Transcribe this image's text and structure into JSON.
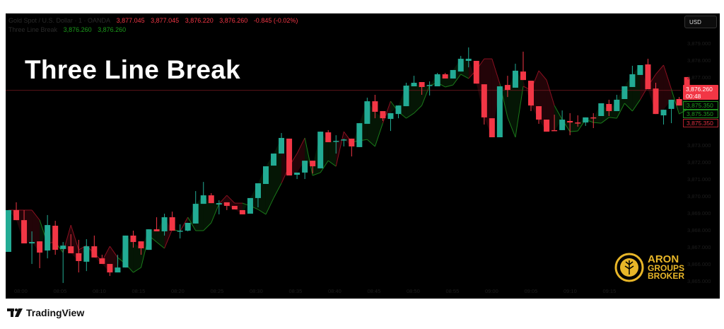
{
  "header": {
    "symbol": "Gold Spot / U.S. Dollar · 1 · OANDA",
    "open": "3,877.045",
    "high": "3,877.045",
    "low": "3,876.220",
    "close": "3,876.260",
    "change": "-0.845 (-0.02%)",
    "indicator_name": "Three Line Break",
    "indicator_value_1": "3,876.260",
    "indicator_value_2": "3,876.260"
  },
  "overlay_title": "Three Line Break",
  "currency_button": "USD",
  "price_labels": {
    "last_price": "3,876.260",
    "countdown": "00:48",
    "level_1": "3,875.350",
    "level_2": "3,875.350",
    "level_3": "3,875.350"
  },
  "brand": {
    "line1": "ARON",
    "line2": "GROUPS",
    "line3": "BROKER"
  },
  "footer": {
    "logo_text": "TradingView"
  },
  "colors": {
    "up": "#22ab94",
    "down": "#f23645",
    "indicator_up": "#1a7a1a",
    "indicator_down": "#8a1020",
    "background": "#000000",
    "brand_gold": "#e8b628"
  },
  "chart_data": {
    "type": "candlestick",
    "timeframe_minutes": 1,
    "price_axis_ticks": [
      "3,879.000",
      "3,878.000",
      "3,877.000",
      "3,873.000",
      "3,872.000",
      "3,871.000",
      "3,870.000",
      "3,869.000",
      "3,868.000",
      "3,867.000",
      "3,866.000",
      "3,865.000"
    ],
    "time_axis_ticks": [
      "08:00",
      "08:05",
      "08:10",
      "08:15",
      "08:20",
      "08:25",
      "08:30",
      "08:35",
      "08:40",
      "08:45",
      "08:50",
      "08:55",
      "09:00",
      "09:05",
      "09:10",
      "09:15"
    ],
    "ohlc": [
      [
        3866.75,
        3869.21,
        3866.75,
        3869.21
      ],
      [
        3869.21,
        3869.67,
        3868.62,
        3868.62
      ],
      [
        3868.62,
        3869.21,
        3867.25,
        3867.25
      ],
      [
        3867.25,
        3867.96,
        3866.04,
        3867.33
      ],
      [
        3867.37,
        3867.37,
        3865.79,
        3866.71
      ],
      [
        3866.83,
        3868.92,
        3866.37,
        3868.33
      ],
      [
        3868.29,
        3868.58,
        3866.58,
        3866.87
      ],
      [
        3866.92,
        3867.33,
        3864.92,
        3867.12
      ],
      [
        3867.08,
        3867.79,
        3866.67,
        3866.67
      ],
      [
        3866.67,
        3867.46,
        3865.54,
        3866.21
      ],
      [
        3866.17,
        3867.5,
        3865.62,
        3867.08
      ],
      [
        3867.08,
        3867.71,
        3866.42,
        3866.42
      ],
      [
        3866.37,
        3866.58,
        3866.04,
        3866.04
      ],
      [
        3866.04,
        3866.04,
        3865.33,
        3865.54
      ],
      [
        3865.54,
        3866.58,
        3865.54,
        3865.83
      ],
      [
        3865.83,
        3867.71,
        3865.83,
        3867.71
      ],
      [
        3867.71,
        3868.0,
        3867.0,
        3867.33
      ],
      [
        3867.37,
        3867.37,
        3866.58,
        3866.96
      ],
      [
        3866.87,
        3868.08,
        3866.87,
        3868.08
      ],
      [
        3868.08,
        3868.79,
        3867.96,
        3867.96
      ],
      [
        3867.96,
        3869.0,
        3867.71,
        3868.79
      ],
      [
        3868.79,
        3869.12,
        3868.0,
        3868.0
      ],
      [
        3867.96,
        3868.37,
        3867.54,
        3868.0
      ],
      [
        3868.0,
        3868.46,
        3867.96,
        3868.46
      ],
      [
        3868.42,
        3870.33,
        3868.42,
        3869.58
      ],
      [
        3869.58,
        3870.87,
        3869.58,
        3870.08
      ],
      [
        3870.08,
        3870.21,
        3869.62,
        3869.62
      ],
      [
        3869.54,
        3869.79,
        3868.96,
        3869.62
      ],
      [
        3869.67,
        3869.67,
        3869.21,
        3869.46
      ],
      [
        3869.46,
        3869.46,
        3869.25,
        3869.25
      ],
      [
        3869.21,
        3869.21,
        3868.96,
        3868.96
      ],
      [
        3869.0,
        3869.92,
        3869.0,
        3869.92
      ],
      [
        3869.92,
        3870.79,
        3869.37,
        3870.79
      ],
      [
        3870.75,
        3871.79,
        3870.75,
        3871.79
      ],
      [
        3871.83,
        3872.54,
        3871.83,
        3872.54
      ],
      [
        3872.54,
        3873.75,
        3872.54,
        3873.46
      ],
      [
        3873.42,
        3873.42,
        3871.25,
        3871.25
      ],
      [
        3871.29,
        3871.42,
        3871.04,
        3871.42
      ],
      [
        3871.42,
        3872.12,
        3871.04,
        3872.12
      ],
      [
        3872.12,
        3872.12,
        3871.37,
        3871.79
      ],
      [
        3871.67,
        3873.83,
        3871.67,
        3873.83
      ],
      [
        3873.79,
        3873.92,
        3873.21,
        3873.21
      ],
      [
        3873.25,
        3873.62,
        3872.54,
        3873.29
      ],
      [
        3873.33,
        3873.42,
        3872.96,
        3873.37
      ],
      [
        3873.42,
        3873.42,
        3872.37,
        3872.96
      ],
      [
        3872.92,
        3874.33,
        3872.92,
        3874.33
      ],
      [
        3874.29,
        3875.83,
        3874.29,
        3875.62
      ],
      [
        3875.62,
        3876.0,
        3874.62,
        3875.0
      ],
      [
        3875.04,
        3875.04,
        3874.46,
        3874.62
      ],
      [
        3874.58,
        3874.92,
        3873.87,
        3874.92
      ],
      [
        3874.87,
        3875.37,
        3874.62,
        3875.37
      ],
      [
        3875.33,
        3876.71,
        3875.33,
        3876.54
      ],
      [
        3876.5,
        3877.12,
        3876.5,
        3876.71
      ],
      [
        3876.75,
        3876.75,
        3876.0,
        3876.46
      ],
      [
        3876.54,
        3876.79,
        3875.96,
        3876.58
      ],
      [
        3876.5,
        3877.29,
        3876.5,
        3877.21
      ],
      [
        3877.21,
        3877.29,
        3876.96,
        3876.96
      ],
      [
        3876.96,
        3877.46,
        3876.96,
        3877.46
      ],
      [
        3877.37,
        3878.29,
        3877.37,
        3878.12
      ],
      [
        3878.0,
        3878.79,
        3877.62,
        3878.12
      ],
      [
        3878.0,
        3878.0,
        3876.66,
        3876.66
      ],
      [
        3876.62,
        3876.62,
        3874.25,
        3874.67
      ],
      [
        3874.62,
        3874.62,
        3873.5,
        3873.5
      ],
      [
        3873.5,
        3876.5,
        3873.5,
        3876.5
      ],
      [
        3876.58,
        3877.12,
        3875.87,
        3876.29
      ],
      [
        3876.42,
        3877.83,
        3876.42,
        3877.42
      ],
      [
        3877.37,
        3878.54,
        3876.87,
        3876.87
      ],
      [
        3876.83,
        3876.83,
        3875.04,
        3875.37
      ],
      [
        3875.33,
        3875.33,
        3874.29,
        3874.54
      ],
      [
        3874.54,
        3874.54,
        3873.83,
        3873.83
      ],
      [
        3873.92,
        3874.83,
        3873.87,
        3873.87
      ],
      [
        3873.92,
        3875.08,
        3873.92,
        3874.54
      ],
      [
        3874.46,
        3874.92,
        3873.62,
        3874.37
      ],
      [
        3874.37,
        3874.79,
        3874.12,
        3874.33
      ],
      [
        3874.37,
        3874.67,
        3874.17,
        3874.67
      ],
      [
        3874.67,
        3874.92,
        3874.04,
        3874.62
      ],
      [
        3874.75,
        3875.5,
        3874.75,
        3875.5
      ],
      [
        3875.46,
        3875.71,
        3874.75,
        3875.04
      ],
      [
        3875.04,
        3876.0,
        3875.04,
        3875.71
      ],
      [
        3875.75,
        3876.5,
        3875.75,
        3876.5
      ],
      [
        3876.46,
        3877.71,
        3876.46,
        3877.21
      ],
      [
        3877.17,
        3877.75,
        3877.17,
        3877.75
      ],
      [
        3877.79,
        3878.12,
        3876.33,
        3876.33
      ],
      [
        3876.37,
        3876.71,
        3874.87,
        3874.87
      ],
      [
        3874.79,
        3875.12,
        3874.25,
        3875.12
      ],
      [
        3875.17,
        3875.71,
        3874.33,
        3875.71
      ],
      [
        3875.75,
        3875.87,
        3875.37,
        3875.37
      ],
      [
        3877.045,
        3877.045,
        3876.22,
        3876.26
      ]
    ],
    "last_price": 3876.26
  }
}
